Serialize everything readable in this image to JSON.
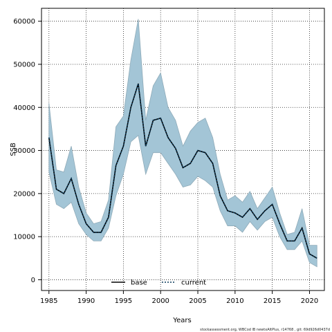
{
  "chart_data": {
    "type": "line",
    "title": "",
    "xlabel": "Years",
    "ylabel": "SSB",
    "xlim": [
      1984,
      2022
    ],
    "ylim": [
      -2500,
      63000
    ],
    "grid": true,
    "legend_placement": "bottom-left",
    "x_ticks": [
      1985,
      1990,
      1995,
      2000,
      2005,
      2010,
      2015,
      2020
    ],
    "y_ticks": [
      0,
      10000,
      20000,
      30000,
      40000,
      50000,
      60000
    ],
    "x": [
      1985,
      1986,
      1987,
      1988,
      1989,
      1990,
      1991,
      1992,
      1993,
      1994,
      1995,
      1996,
      1997,
      1998,
      1999,
      2000,
      2001,
      2002,
      2003,
      2004,
      2005,
      2006,
      2007,
      2008,
      2009,
      2010,
      2011,
      2012,
      2013,
      2014,
      2015,
      2016,
      2017,
      2018,
      2019,
      2020,
      2021
    ],
    "series": [
      {
        "name": "base",
        "values": [
          33000,
          21000,
          20000,
          23500,
          17500,
          13000,
          11000,
          11000,
          14500,
          26500,
          31000,
          40000,
          45500,
          31000,
          37000,
          37500,
          33000,
          30500,
          26000,
          27000,
          30000,
          29500,
          27000,
          19500,
          16000,
          15500,
          14500,
          16500,
          14000,
          16000,
          17500,
          13000,
          9000,
          9000,
          12000,
          6000,
          5000
        ]
      },
      {
        "name": "current",
        "values": [
          33000,
          21000,
          20000,
          23500,
          17500,
          13000,
          11000,
          11000,
          14500,
          26500,
          31000,
          40000,
          45500,
          31000,
          37000,
          37500,
          33000,
          30500,
          26000,
          27000,
          30000,
          29500,
          27000,
          19500,
          16000,
          15500,
          14500,
          16500,
          14000,
          16000,
          17500,
          13000,
          9000,
          9000,
          12000,
          6000,
          5000
        ]
      }
    ],
    "band": {
      "lower": [
        25000,
        17500,
        16500,
        18000,
        13000,
        10500,
        9000,
        9000,
        12000,
        19500,
        24500,
        32000,
        33500,
        24500,
        29500,
        29500,
        27000,
        24500,
        21500,
        22000,
        24000,
        23000,
        21500,
        16000,
        12500,
        12500,
        11000,
        13500,
        11500,
        13500,
        14500,
        10000,
        7000,
        7000,
        9000,
        4000,
        3000
      ],
      "upper": [
        41000,
        25500,
        25000,
        31000,
        21500,
        15500,
        13000,
        13500,
        18500,
        35500,
        38000,
        51000,
        60500,
        37000,
        45000,
        48000,
        40000,
        37000,
        31000,
        34500,
        36500,
        37500,
        33000,
        24500,
        18500,
        19500,
        18000,
        20500,
        16500,
        19000,
        21500,
        15500,
        10500,
        11000,
        16500,
        8000,
        8000
      ]
    },
    "legend": [
      {
        "label": "base",
        "style": "solid"
      },
      {
        "label": "current",
        "style": "dotted"
      }
    ],
    "colors": {
      "band_fill": "#a3c5d6",
      "band_stroke": "#8eaab8",
      "base_line": "#000000",
      "current_line": "#0a3a5a",
      "grid": "#222222",
      "frame": "#000000"
    },
    "footer": "stockassessment.org, WBCod lB newtxAltPlus, r14768 , git: 69d926d0437d"
  }
}
